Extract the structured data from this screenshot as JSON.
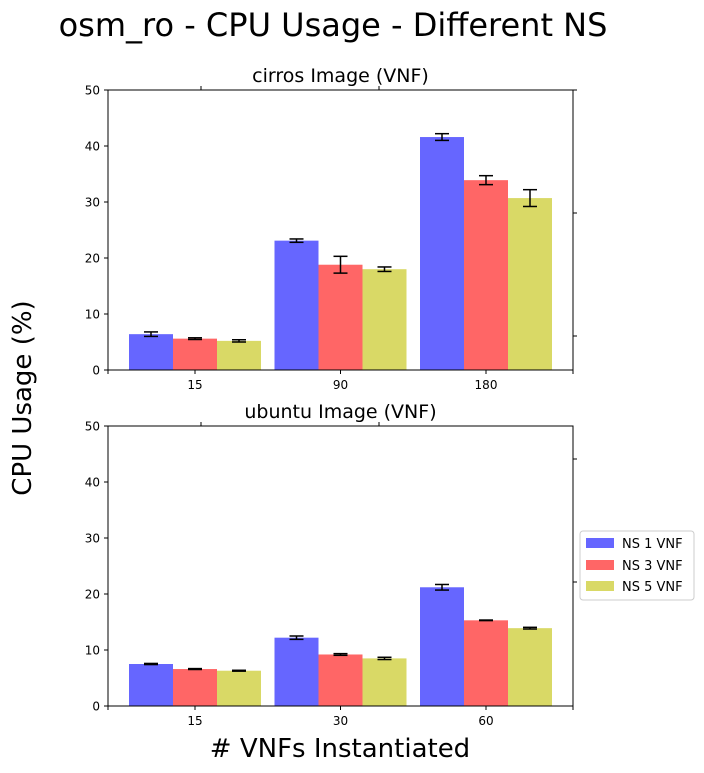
{
  "figure": {
    "title": "osm_ro - CPU Usage - Different NS",
    "ylabel": "CPU Usage (%)",
    "xlabel": "# VNFs Instantiated"
  },
  "legend": {
    "placement": "right",
    "entries": [
      {
        "name": "NS 1 VNF",
        "color": "#6666ff"
      },
      {
        "name": "NS 3 VNF",
        "color": "#ff6666"
      },
      {
        "name": "NS 5 VNF",
        "color": "#d9d966"
      }
    ]
  },
  "chart_data": [
    {
      "type": "bar",
      "title": "cirros Image (VNF)",
      "categories": [
        "15",
        "90",
        "180"
      ],
      "ylim": [
        0,
        50
      ],
      "yticks": [
        0,
        10,
        20,
        30,
        40,
        50
      ],
      "grid": false,
      "series": [
        {
          "name": "NS 1 VNF",
          "values": [
            6.4,
            23.1,
            41.6
          ],
          "errors": [
            0.4,
            0.3,
            0.6
          ]
        },
        {
          "name": "NS 3 VNF",
          "values": [
            5.6,
            18.8,
            33.9
          ],
          "errors": [
            0.15,
            1.5,
            0.8
          ]
        },
        {
          "name": "NS 5 VNF",
          "values": [
            5.2,
            18.0,
            30.7
          ],
          "errors": [
            0.2,
            0.4,
            1.5
          ]
        }
      ]
    },
    {
      "type": "bar",
      "title": "ubuntu Image (VNF)",
      "categories": [
        "15",
        "30",
        "60"
      ],
      "ylim": [
        0,
        50
      ],
      "yticks": [
        0,
        10,
        20,
        30,
        40,
        50
      ],
      "grid": false,
      "series": [
        {
          "name": "NS 1 VNF",
          "values": [
            7.5,
            12.2,
            21.2
          ],
          "errors": [
            0.1,
            0.3,
            0.5
          ]
        },
        {
          "name": "NS 3 VNF",
          "values": [
            6.6,
            9.2,
            15.3
          ],
          "errors": [
            0.08,
            0.15,
            0.05
          ]
        },
        {
          "name": "NS 5 VNF",
          "values": [
            6.3,
            8.5,
            13.9
          ],
          "errors": [
            0.08,
            0.2,
            0.15
          ]
        }
      ]
    }
  ]
}
